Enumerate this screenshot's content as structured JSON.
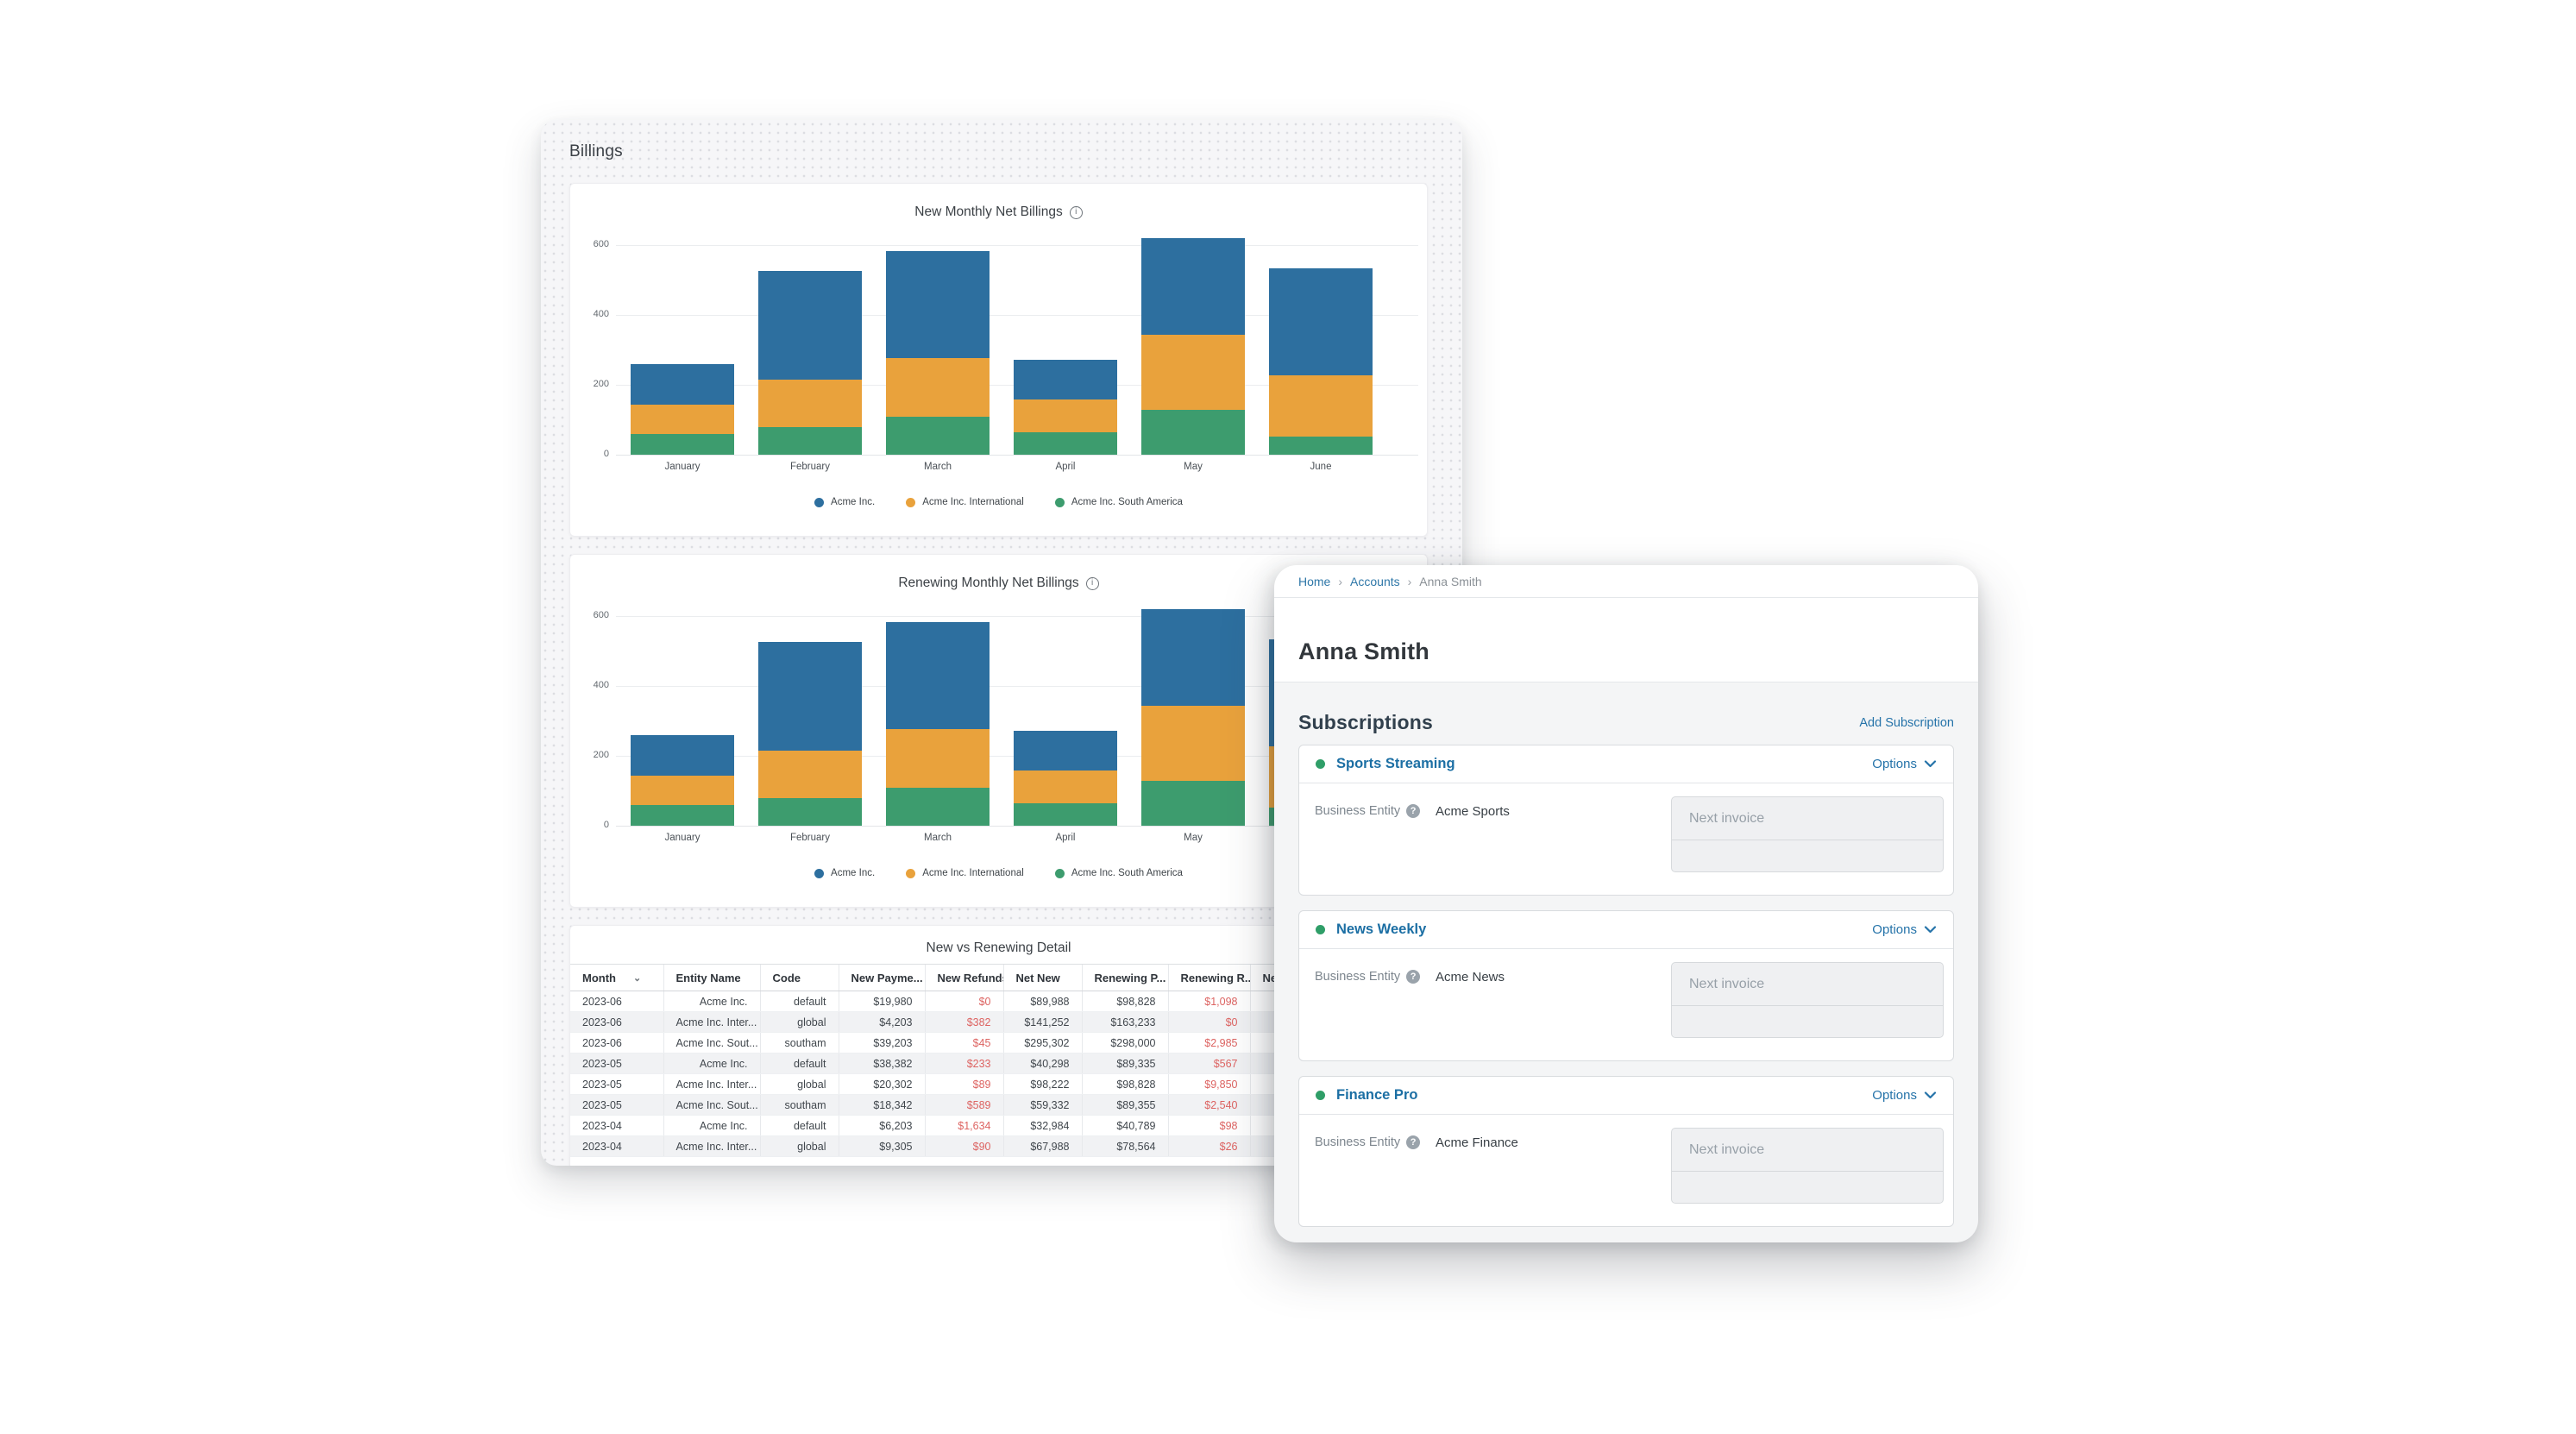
{
  "billings": {
    "title": "Billings"
  },
  "colors": {
    "bar_blue": "#2d6f9f",
    "bar_orange": "#e9a23c",
    "bar_green": "#3d9c6e",
    "link_blue": "#2573a9",
    "negative_red": "#dd6462",
    "status_green": "#2f9e68"
  },
  "chart_data": [
    {
      "type": "bar",
      "stacked": true,
      "title": "New Monthly Net Billings",
      "categories": [
        "January",
        "February",
        "March",
        "April",
        "May",
        "June"
      ],
      "series": [
        {
          "name": "Acme Inc.",
          "color": "#2d6f9f",
          "values": [
            116,
            311,
            306,
            114,
            277,
            306
          ]
        },
        {
          "name": "Acme Inc. International",
          "color": "#e9a23c",
          "values": [
            84,
            136,
            168,
            94,
            215,
            175
          ]
        },
        {
          "name": "Acme Inc. South America",
          "color": "#3d9c6e",
          "values": [
            60,
            79,
            109,
            64,
            128,
            52
          ]
        }
      ],
      "stack_order_bottom_to_top": [
        "Acme Inc. South America",
        "Acme Inc. International",
        "Acme Inc."
      ],
      "ylim": [
        0,
        600
      ],
      "yticks": [
        0,
        200,
        400,
        600
      ],
      "grid": true,
      "legend_position": "bottom"
    },
    {
      "type": "bar",
      "stacked": true,
      "title": "Renewing Monthly Net Billings",
      "categories": [
        "January",
        "February",
        "March",
        "April",
        "May",
        "June"
      ],
      "series": [
        {
          "name": "Acme Inc.",
          "color": "#2d6f9f",
          "values": [
            116,
            311,
            306,
            114,
            277,
            306
          ]
        },
        {
          "name": "Acme Inc. International",
          "color": "#e9a23c",
          "values": [
            84,
            136,
            168,
            94,
            215,
            175
          ]
        },
        {
          "name": "Acme Inc. South America",
          "color": "#3d9c6e",
          "values": [
            60,
            79,
            109,
            64,
            128,
            52
          ]
        }
      ],
      "stack_order_bottom_to_top": [
        "Acme Inc. South America",
        "Acme Inc. International",
        "Acme Inc."
      ],
      "ylim": [
        0,
        600
      ],
      "yticks": [
        0,
        200,
        400,
        600
      ],
      "grid": true,
      "legend_position": "bottom"
    },
    {
      "type": "table",
      "title": "New vs Renewing Detail",
      "columns": [
        {
          "label": "Month",
          "sortable": true
        },
        {
          "label": "Entity Name"
        },
        {
          "label": "Code"
        },
        {
          "label": "New Payme..."
        },
        {
          "label": "New Refunds",
          "negative": true
        },
        {
          "label": "Net New"
        },
        {
          "label": "Renewing P..."
        },
        {
          "label": "Renewing R...",
          "negative": true
        },
        {
          "label": "Net R...",
          "negative": true
        }
      ],
      "rows": [
        [
          "2023-06",
          "Acme Inc.",
          "default",
          "$19,980",
          "$0",
          "$89,988",
          "$98,828",
          "$1,098",
          ""
        ],
        [
          "2023-06",
          "Acme Inc. Inter...",
          "global",
          "$4,203",
          "$382",
          "$141,252",
          "$163,233",
          "$0",
          ""
        ],
        [
          "2023-06",
          "Acme Inc. Sout...",
          "southam",
          "$39,203",
          "$45",
          "$295,302",
          "$298,000",
          "$2,985",
          "$"
        ],
        [
          "2023-05",
          "Acme Inc.",
          "default",
          "$38,382",
          "$233",
          "$40,298",
          "$89,335",
          "$567",
          "$"
        ],
        [
          "2023-05",
          "Acme Inc. Inter...",
          "global",
          "$20,302",
          "$89",
          "$98,222",
          "$98,828",
          "$9,850",
          ""
        ],
        [
          "2023-05",
          "Acme Inc. Sout...",
          "southam",
          "$18,342",
          "$589",
          "$59,332",
          "$89,355",
          "$2,540",
          "$"
        ],
        [
          "2023-04",
          "Acme Inc.",
          "default",
          "$6,203",
          "$1,634",
          "$32,984",
          "$40,789",
          "$98",
          ""
        ],
        [
          "2023-04",
          "Acme Inc. Inter...",
          "global",
          "$9,305",
          "$90",
          "$67,988",
          "$78,564",
          "$26",
          ""
        ]
      ]
    }
  ],
  "account_panel": {
    "breadcrumb": [
      {
        "label": "Home",
        "link": true
      },
      {
        "label": "Accounts",
        "link": true
      },
      {
        "label": "Anna Smith",
        "link": false
      }
    ],
    "title": "Anna Smith",
    "subscriptions_heading": "Subscriptions",
    "add_subscription_label": "Add Subscription",
    "options_label": "Options",
    "business_entity_label": "Business Entity",
    "next_invoice_placeholder": "Next invoice",
    "status_color": "#2f9e68",
    "subscriptions": [
      {
        "name": "Sports Streaming",
        "business_entity": "Acme Sports"
      },
      {
        "name": "News Weekly",
        "business_entity": "Acme News"
      },
      {
        "name": "Finance Pro",
        "business_entity": "Acme Finance"
      }
    ]
  }
}
